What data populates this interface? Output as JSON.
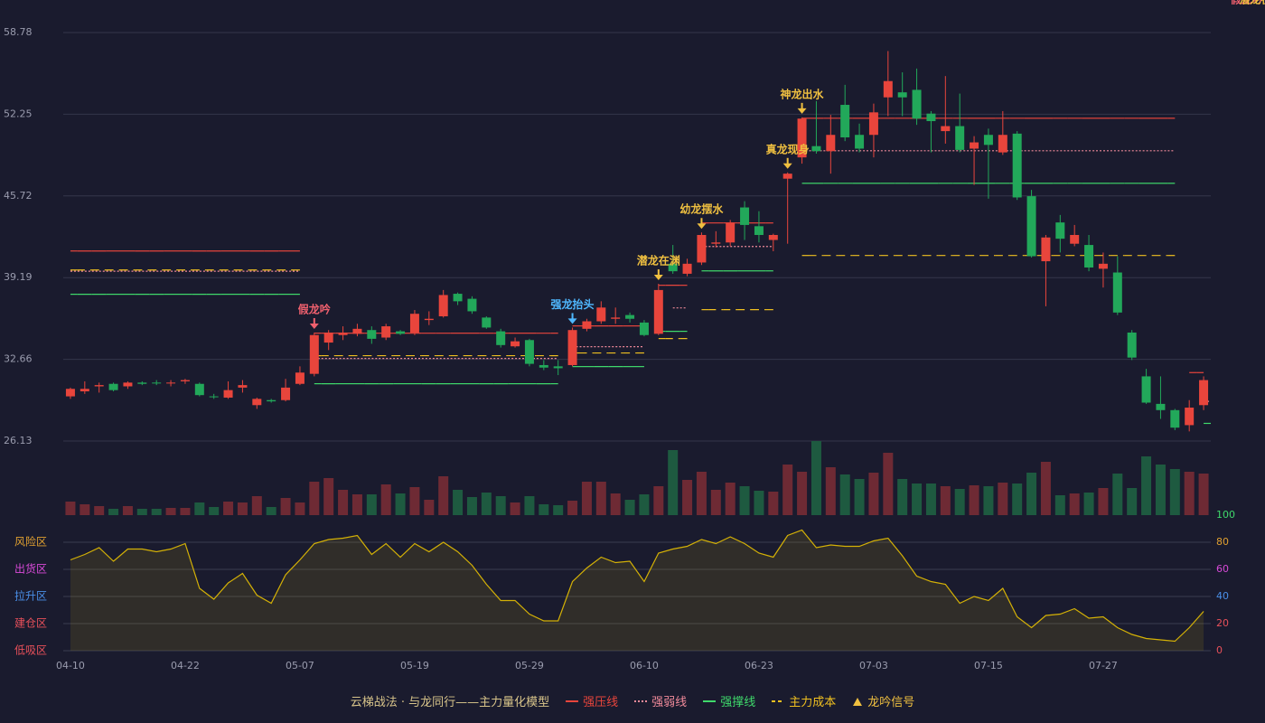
{
  "chart_data": {
    "type": "candlestick",
    "background": "#1a1b2e",
    "up_color": "#e8453c",
    "down_color": "#22a85a",
    "ylim": [
      26.13,
      58.78
    ],
    "yticks": [
      58.78,
      52.25,
      45.72,
      39.19,
      32.66,
      26.13
    ],
    "grid": true,
    "categories": [
      "04-10",
      null,
      null,
      null,
      null,
      null,
      null,
      null,
      "04-22",
      null,
      null,
      null,
      null,
      null,
      null,
      null,
      "05-07",
      null,
      null,
      null,
      null,
      null,
      null,
      null,
      "05-19",
      null,
      null,
      null,
      null,
      null,
      null,
      null,
      "05-29",
      null,
      null,
      null,
      null,
      null,
      null,
      null,
      "06-10",
      null,
      null,
      null,
      null,
      null,
      null,
      null,
      "06-23",
      null,
      null,
      null,
      null,
      null,
      null,
      null,
      "07-03",
      null,
      null,
      null,
      null,
      null,
      null,
      null,
      "07-15",
      null,
      null,
      null,
      null,
      null,
      null,
      null,
      "07-27",
      null,
      null,
      null,
      null,
      null,
      null,
      null
    ],
    "open": [
      29.7,
      30.1,
      30.5,
      30.7,
      30.5,
      30.8,
      30.8,
      30.75,
      30.9,
      30.7,
      29.7,
      29.6,
      30.4,
      29.0,
      29.4,
      29.4,
      30.7,
      31.5,
      34.0,
      34.6,
      34.7,
      35.0,
      34.4,
      34.9,
      34.8,
      35.8,
      36.1,
      37.9,
      37.5,
      36.0,
      34.9,
      33.7,
      34.2,
      32.2,
      32.1,
      32.2,
      35.1,
      35.7,
      35.9,
      36.2,
      35.6,
      34.7,
      40.3,
      39.5,
      40.4,
      41.9,
      42.0,
      44.8,
      43.3,
      42.2,
      47.1,
      48.8,
      49.7,
      49.3,
      53.0,
      50.6,
      50.6,
      53.6,
      54.0,
      54.2,
      52.3,
      50.9,
      51.3,
      49.5,
      50.6,
      49.2,
      50.7,
      45.7,
      40.5,
      43.6,
      41.9,
      41.8,
      39.9,
      39.6,
      34.8,
      31.3,
      29.1,
      28.6,
      27.4,
      29.0
    ],
    "high": [
      30.4,
      30.9,
      30.8,
      30.8,
      30.9,
      30.9,
      31.0,
      31.0,
      31.1,
      30.8,
      29.9,
      30.9,
      31.0,
      29.6,
      29.5,
      31.1,
      32.1,
      34.8,
      35.0,
      35.3,
      35.5,
      35.3,
      35.5,
      35.0,
      36.6,
      36.5,
      38.2,
      38.0,
      37.7,
      36.1,
      35.1,
      34.4,
      34.3,
      32.6,
      32.6,
      35.2,
      35.9,
      37.3,
      36.8,
      36.4,
      35.8,
      38.7,
      41.8,
      40.7,
      42.8,
      42.9,
      43.8,
      45.3,
      44.5,
      42.7,
      47.6,
      52.0,
      53.3,
      52.2,
      54.6,
      51.5,
      53.1,
      57.3,
      55.6,
      55.9,
      52.5,
      55.3,
      53.9,
      50.5,
      51.1,
      52.5,
      50.9,
      46.2,
      42.6,
      44.2,
      43.4,
      42.6,
      41.2,
      40.9,
      35.0,
      31.9,
      31.3,
      28.7,
      29.4,
      31.3
    ],
    "low": [
      29.5,
      29.9,
      30.0,
      30.1,
      30.3,
      30.6,
      30.6,
      30.5,
      30.7,
      29.7,
      29.5,
      29.5,
      30.0,
      28.7,
      29.2,
      29.3,
      30.6,
      31.3,
      33.4,
      34.2,
      34.5,
      33.9,
      34.2,
      34.6,
      34.6,
      35.4,
      36.0,
      37.0,
      36.3,
      35.1,
      33.6,
      33.6,
      32.1,
      31.8,
      31.4,
      32.1,
      34.9,
      35.5,
      35.5,
      35.6,
      34.5,
      34.6,
      39.5,
      39.3,
      40.2,
      41.6,
      41.7,
      42.2,
      42.0,
      41.3,
      41.9,
      48.3,
      49.1,
      47.5,
      50.1,
      49.2,
      48.8,
      52.1,
      52.1,
      51.4,
      49.2,
      49.9,
      49.2,
      46.6,
      45.5,
      49.0,
      45.4,
      40.8,
      36.9,
      41.2,
      41.7,
      39.7,
      38.4,
      36.2,
      32.6,
      29.1,
      27.9,
      27.0,
      26.9,
      28.6
    ],
    "close": [
      30.3,
      30.3,
      30.6,
      30.2,
      30.8,
      30.7,
      30.75,
      30.8,
      31.0,
      29.8,
      29.65,
      30.2,
      30.6,
      29.5,
      29.3,
      30.4,
      31.6,
      34.6,
      34.8,
      34.8,
      35.1,
      34.3,
      35.3,
      34.7,
      36.3,
      35.9,
      37.8,
      37.3,
      36.5,
      35.2,
      33.8,
      34.1,
      32.3,
      32.0,
      31.95,
      35.0,
      35.7,
      36.8,
      36.0,
      35.9,
      34.6,
      38.2,
      39.7,
      40.3,
      42.6,
      42.0,
      43.6,
      43.4,
      42.6,
      42.6,
      47.5,
      51.9,
      49.3,
      50.6,
      50.4,
      49.5,
      52.4,
      54.9,
      53.6,
      51.9,
      51.7,
      51.3,
      49.4,
      50.0,
      49.8,
      50.6,
      45.6,
      40.9,
      42.4,
      42.3,
      42.6,
      40.0,
      40.3,
      36.4,
      32.8,
      29.2,
      28.6,
      27.2,
      28.8,
      31.0
    ],
    "series": [
      {
        "name": "强压线",
        "color": "#e8453c",
        "style": "solid",
        "values": [
          41.32,
          41.32,
          41.32,
          41.32,
          41.32,
          41.32,
          41.32,
          41.32,
          41.32,
          41.32,
          41.32,
          41.32,
          41.32,
          41.32,
          41.32,
          41.32,
          41.32,
          34.75,
          34.75,
          34.75,
          34.75,
          34.75,
          34.75,
          34.75,
          34.75,
          34.75,
          34.75,
          34.75,
          34.75,
          34.75,
          34.75,
          34.75,
          34.75,
          34.75,
          34.75,
          35.33,
          35.33,
          35.33,
          35.33,
          35.33,
          35.33,
          38.58,
          38.58,
          38.58,
          43.56,
          43.56,
          43.56,
          43.56,
          43.56,
          43.56,
          null,
          51.93,
          51.93,
          51.93,
          51.93,
          51.93,
          51.93,
          51.93,
          51.93,
          51.93,
          51.93,
          51.93,
          51.93,
          51.93,
          51.93,
          51.93,
          51.93,
          51.93,
          51.93,
          51.93,
          51.93,
          51.93,
          51.93,
          51.93,
          51.93,
          51.93,
          51.93,
          51.93,
          31.6,
          31.6
        ]
      },
      {
        "name": "强弱线",
        "color": "#f08a9a",
        "style": "dotted",
        "values": [
          39.7,
          39.7,
          39.7,
          39.7,
          39.7,
          39.7,
          39.7,
          39.7,
          39.7,
          39.7,
          39.7,
          39.7,
          39.7,
          39.7,
          39.7,
          39.7,
          39.7,
          32.73,
          32.73,
          32.73,
          32.73,
          32.73,
          32.73,
          32.73,
          32.73,
          32.73,
          32.73,
          32.73,
          32.73,
          32.73,
          32.73,
          32.73,
          32.73,
          32.73,
          32.73,
          33.67,
          33.67,
          33.67,
          33.67,
          33.67,
          33.67,
          null,
          36.77,
          36.77,
          41.68,
          41.68,
          41.68,
          41.68,
          41.68,
          41.68,
          null,
          49.33,
          49.33,
          49.33,
          49.33,
          49.33,
          49.33,
          49.33,
          49.33,
          49.33,
          49.33,
          49.33,
          49.33,
          49.33,
          49.33,
          49.33,
          49.33,
          49.33,
          49.33,
          49.33,
          49.33,
          49.33,
          49.33,
          49.33,
          49.33,
          49.33,
          49.33,
          49.33,
          null,
          29.3
        ]
      },
      {
        "name": "强撑线",
        "color": "#3fd96b",
        "style": "solid",
        "values": [
          37.86,
          37.86,
          37.86,
          37.86,
          37.86,
          37.86,
          37.86,
          37.86,
          37.86,
          37.86,
          37.86,
          37.86,
          37.86,
          37.86,
          37.86,
          37.86,
          37.86,
          30.71,
          30.71,
          30.71,
          30.71,
          30.71,
          30.71,
          30.71,
          30.71,
          30.71,
          30.71,
          30.71,
          30.71,
          30.71,
          30.71,
          30.71,
          30.71,
          30.71,
          30.71,
          32.08,
          32.08,
          32.08,
          32.08,
          32.08,
          32.08,
          34.9,
          34.9,
          34.9,
          39.73,
          39.73,
          39.73,
          39.73,
          39.73,
          39.73,
          null,
          46.73,
          46.73,
          46.73,
          46.73,
          46.73,
          46.73,
          46.73,
          46.73,
          46.73,
          46.73,
          46.73,
          46.73,
          46.73,
          46.73,
          46.73,
          46.73,
          46.73,
          46.73,
          46.73,
          46.73,
          46.73,
          46.73,
          46.73,
          46.73,
          46.73,
          46.73,
          46.73,
          null,
          27.54
        ]
      },
      {
        "name": "主力成本",
        "color": "#f0c020",
        "style": "dashed",
        "values": [
          39.8,
          39.8,
          39.8,
          39.8,
          39.8,
          39.8,
          39.8,
          39.8,
          39.8,
          39.8,
          39.8,
          39.8,
          39.8,
          39.8,
          39.8,
          39.8,
          39.8,
          32.95,
          32.95,
          32.95,
          32.95,
          32.95,
          32.95,
          32.95,
          32.95,
          32.95,
          32.95,
          32.95,
          32.95,
          32.95,
          32.95,
          32.95,
          32.95,
          32.95,
          32.95,
          33.17,
          33.17,
          33.17,
          33.17,
          33.17,
          33.17,
          34.32,
          34.32,
          34.32,
          36.63,
          36.63,
          36.63,
          36.63,
          36.63,
          36.63,
          null,
          40.96,
          40.96,
          40.96,
          40.96,
          40.96,
          40.96,
          40.96,
          40.96,
          40.96,
          40.96,
          40.96,
          40.96,
          40.96,
          40.96,
          40.96,
          40.96,
          40.96,
          40.96,
          40.96,
          40.96,
          40.96,
          40.96,
          40.96,
          40.96,
          40.96,
          40.96,
          40.96,
          null,
          null
        ]
      }
    ],
    "signals": [
      null,
      null,
      null,
      null,
      null,
      null,
      null,
      null,
      null,
      null,
      null,
      null,
      null,
      null,
      null,
      null,
      null,
      {
        "label": "假龙吟",
        "color": "#f0606e"
      },
      null,
      null,
      null,
      null,
      null,
      null,
      null,
      null,
      null,
      null,
      null,
      null,
      null,
      null,
      null,
      null,
      null,
      {
        "label": "强龙抬头",
        "color": "#4fb8ff"
      },
      null,
      null,
      null,
      null,
      null,
      {
        "label": "潜龙在渊",
        "color": "#f0c040"
      },
      null,
      null,
      {
        "label": "幼龙摆水",
        "color": "#f0c040"
      },
      null,
      null,
      null,
      null,
      null,
      {
        "label": "真龙现身",
        "color": "#f0c040"
      },
      {
        "label": "神龙出水",
        "color": "#f0c040"
      },
      null,
      null,
      null,
      null,
      null,
      null,
      null,
      null,
      null,
      null,
      null,
      null,
      null,
      null,
      null,
      null,
      null,
      null,
      null,
      null,
      null,
      null,
      null,
      null,
      null,
      null,
      null,
      null,
      null,
      null,
      {
        "label": "假龙吟",
        "color": "#f0606e"
      },
      {
        "label": "潜龙在渊",
        "color": "#f0c040"
      }
    ],
    "signal_legend": {
      "label": "龙吟信号",
      "color": "#f0c040"
    },
    "legend_title": "云梯战法 · 与龙同行——主力量化模型",
    "volume": {
      "ylim": [
        0,
        82
      ],
      "up_color": "#6e2a34",
      "down_color": "#1e5a40",
      "values": [
        15,
        12,
        10,
        7,
        10,
        7,
        7,
        8,
        8,
        14,
        9,
        15,
        14,
        21,
        9,
        19,
        14,
        37,
        41,
        28,
        23,
        23,
        34,
        24,
        31,
        17,
        43,
        28,
        20,
        25,
        21,
        14,
        21,
        12,
        11,
        16,
        37,
        37,
        24,
        17,
        23,
        32,
        72,
        39,
        48,
        28,
        36,
        32,
        27,
        26,
        56,
        48,
        82,
        53,
        45,
        40,
        47,
        69,
        40,
        35,
        35,
        32,
        29,
        33,
        32,
        36,
        35,
        47,
        59,
        22,
        24,
        25,
        30,
        46,
        30,
        65,
        56,
        51,
        48,
        46
      ]
    },
    "indicator": {
      "ylim": [
        0,
        100
      ],
      "color": "#d4b106",
      "yticks": [
        0,
        20,
        40,
        60,
        80,
        100
      ],
      "ytick_colors": [
        "#e8505a",
        "#e8505a",
        "#4a8fe8",
        "#d84ad8",
        "#e0a030",
        "#3fd96b"
      ],
      "zones": [
        {
          "value": 80,
          "label": "风险区",
          "color": "#e0a030"
        },
        {
          "value": 60,
          "label": "出货区",
          "color": "#d84ad8"
        },
        {
          "value": 40,
          "label": "拉升区",
          "color": "#4a8fe8"
        },
        {
          "value": 20,
          "label": "建仓区",
          "color": "#e8505a"
        },
        {
          "value": 0,
          "label": "低吸区",
          "color": "#e8505a"
        }
      ],
      "values": [
        67,
        71,
        76,
        66,
        75,
        75,
        73,
        75,
        79,
        46,
        38,
        50,
        57,
        41,
        35,
        56,
        67,
        79,
        82,
        83,
        85,
        71,
        79,
        69,
        79,
        73,
        80,
        73,
        63,
        49,
        37,
        37,
        27,
        22,
        22,
        51,
        61,
        69,
        65,
        66,
        51,
        72,
        75,
        77,
        82,
        79,
        84,
        79,
        72,
        69,
        85,
        89,
        76,
        78,
        77,
        77,
        81,
        83,
        70,
        55,
        51,
        49,
        35,
        40,
        37,
        46,
        25,
        17,
        26,
        27,
        31,
        24,
        25,
        17,
        12,
        9,
        8,
        7,
        17,
        29
      ]
    }
  }
}
